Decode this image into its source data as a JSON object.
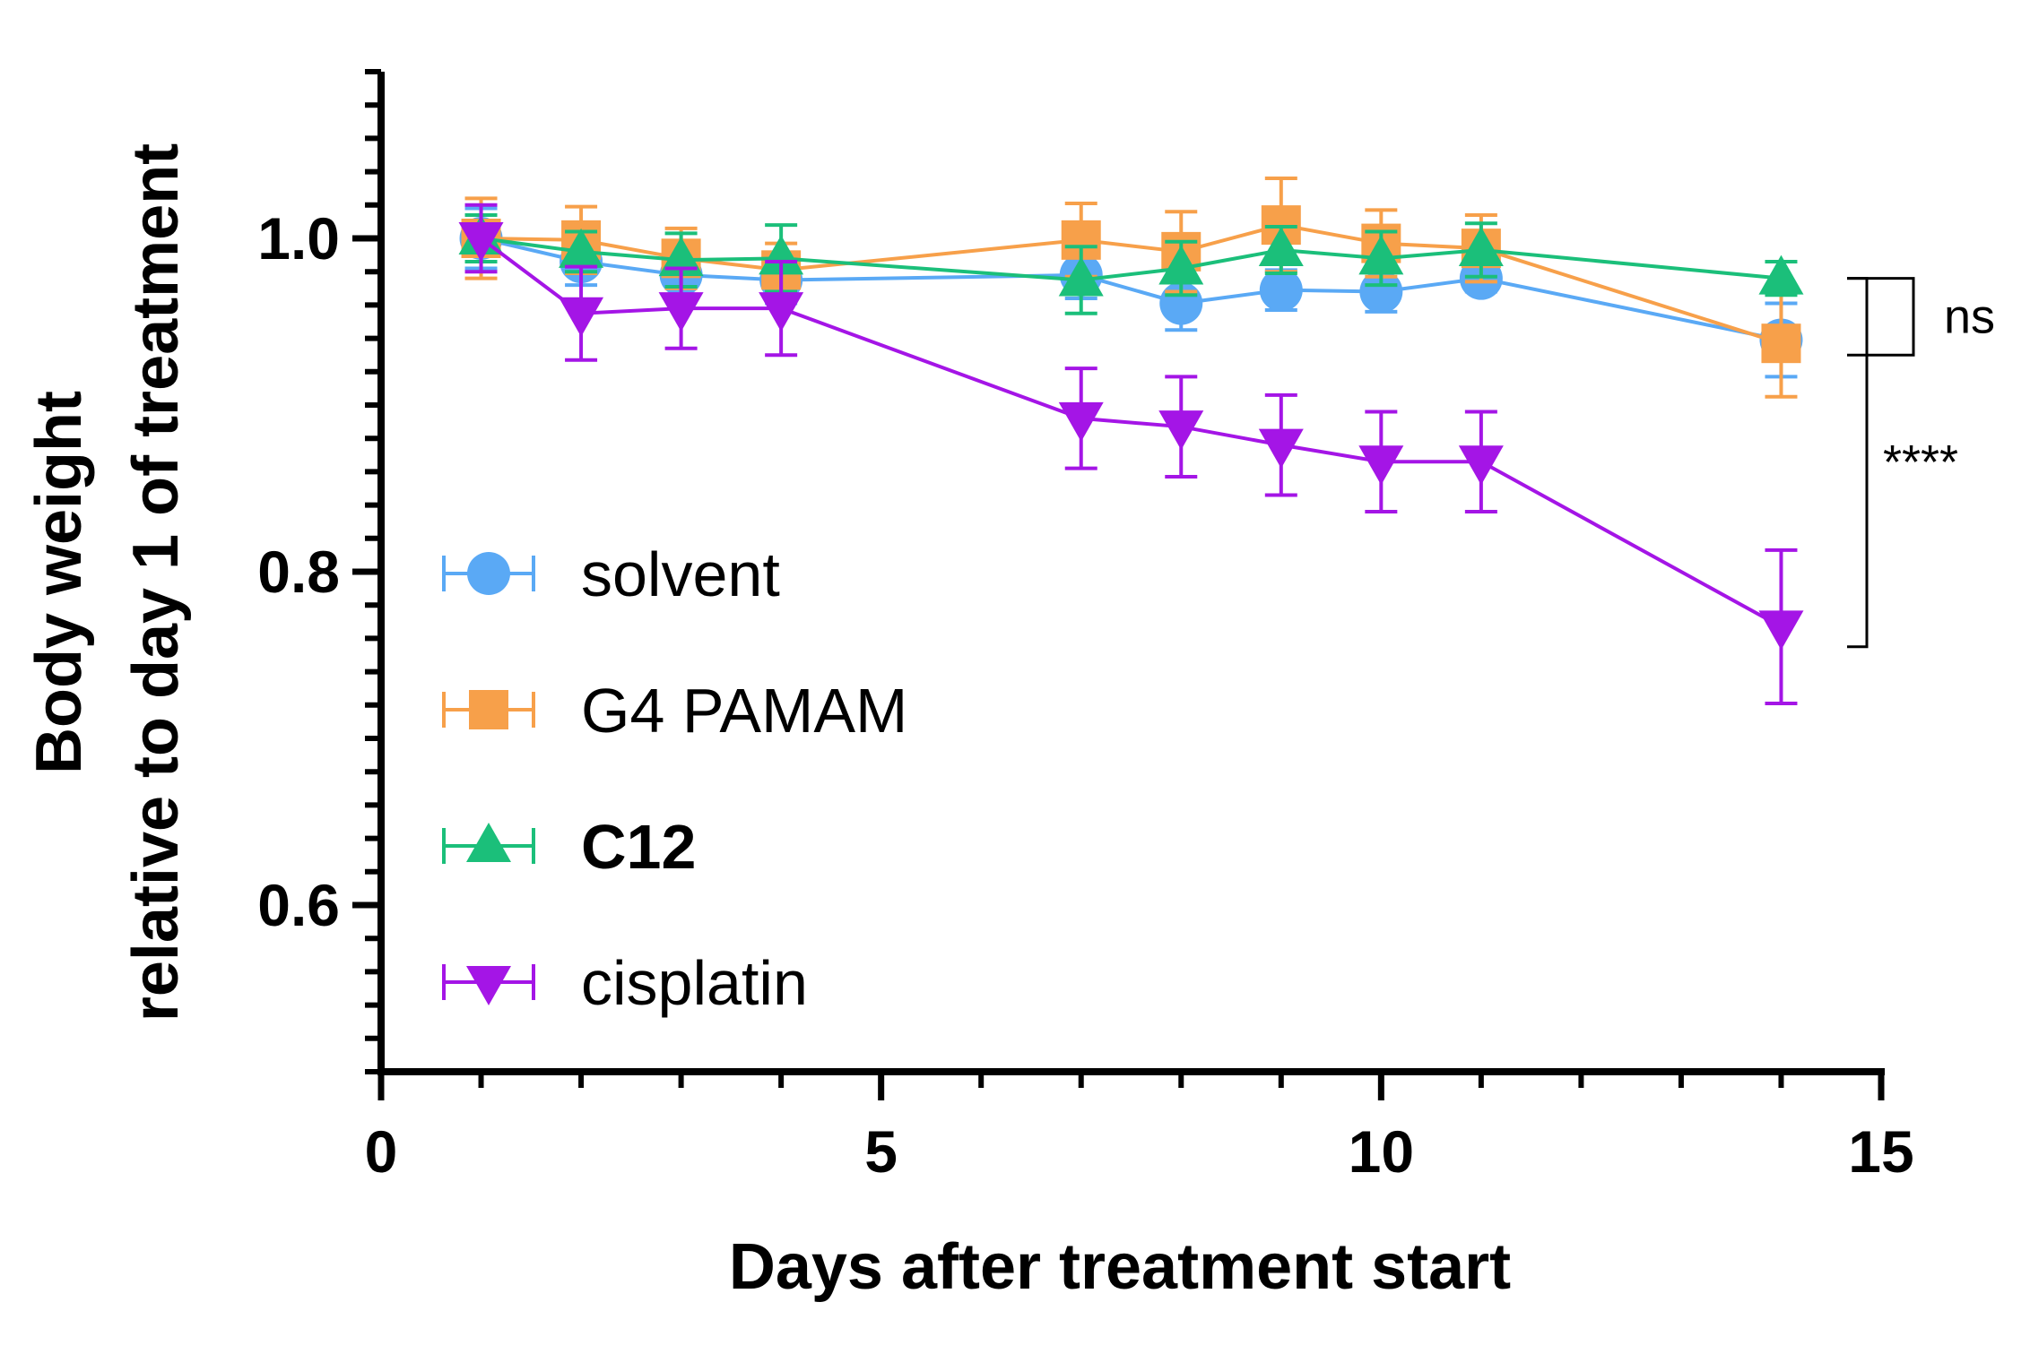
{
  "chart_data": {
    "type": "line",
    "title": "",
    "xlabel": "Days after treatment start",
    "ylabel_line1": "Body weight",
    "ylabel_line2": "relative to day 1 of treatment",
    "xlim": [
      0,
      15
    ],
    "ylim": [
      0.5,
      1.1
    ],
    "x_ticks": [
      0,
      5,
      10,
      15
    ],
    "y_ticks": [
      0.6,
      0.8,
      1.0
    ],
    "x_tick_labels": [
      "0",
      "5",
      "10",
      "15"
    ],
    "y_tick_labels": [
      "0.6",
      "0.8",
      "1.0"
    ],
    "grid": false,
    "legend_position": "lower-left",
    "series": [
      {
        "name": "solvent",
        "marker": "circle",
        "color": "#5aa9f5",
        "bold": false,
        "x": [
          1,
          2,
          3,
          4,
          7,
          8,
          9,
          10,
          11,
          14
        ],
        "y": [
          1.0,
          0.986,
          0.978,
          0.975,
          0.978,
          0.961,
          0.969,
          0.968,
          0.976,
          0.939
        ],
        "err": [
          0.018,
          0.014,
          0.012,
          0.014,
          0.014,
          0.016,
          0.012,
          0.012,
          0.008,
          0.022
        ]
      },
      {
        "name": "G4 PAMAM",
        "marker": "square",
        "color": "#f7a04a",
        "bold": false,
        "x": [
          1,
          2,
          3,
          4,
          7,
          8,
          9,
          10,
          11,
          14
        ],
        "y": [
          1.0,
          0.999,
          0.988,
          0.981,
          0.999,
          0.992,
          1.008,
          0.997,
          0.994,
          0.937
        ],
        "err": [
          0.024,
          0.02,
          0.018,
          0.016,
          0.022,
          0.024,
          0.028,
          0.02,
          0.02,
          0.032
        ]
      },
      {
        "name": "C12",
        "marker": "triangle-up",
        "color": "#1bbf7a",
        "bold": true,
        "x": [
          1,
          2,
          3,
          4,
          7,
          8,
          9,
          10,
          11,
          14
        ],
        "y": [
          1.0,
          0.992,
          0.987,
          0.988,
          0.975,
          0.982,
          0.993,
          0.988,
          0.993,
          0.976
        ],
        "err": [
          0.014,
          0.012,
          0.016,
          0.02,
          0.02,
          0.016,
          0.014,
          0.016,
          0.016,
          0.01
        ]
      },
      {
        "name": "cisplatin",
        "marker": "triangle-down",
        "color": "#a415e6",
        "bold": false,
        "x": [
          1,
          2,
          3,
          4,
          7,
          8,
          9,
          10,
          11,
          14
        ],
        "y": [
          1.0,
          0.955,
          0.958,
          0.958,
          0.892,
          0.887,
          0.876,
          0.866,
          0.866,
          0.767
        ],
        "err": [
          0.02,
          0.028,
          0.024,
          0.028,
          0.03,
          0.03,
          0.03,
          0.03,
          0.03,
          0.046
        ]
      }
    ],
    "annotations": [
      {
        "label": "ns",
        "from_y": 0.976,
        "to_y": 0.93
      },
      {
        "label": "****",
        "from_y": 0.976,
        "to_y": 0.755
      }
    ]
  }
}
